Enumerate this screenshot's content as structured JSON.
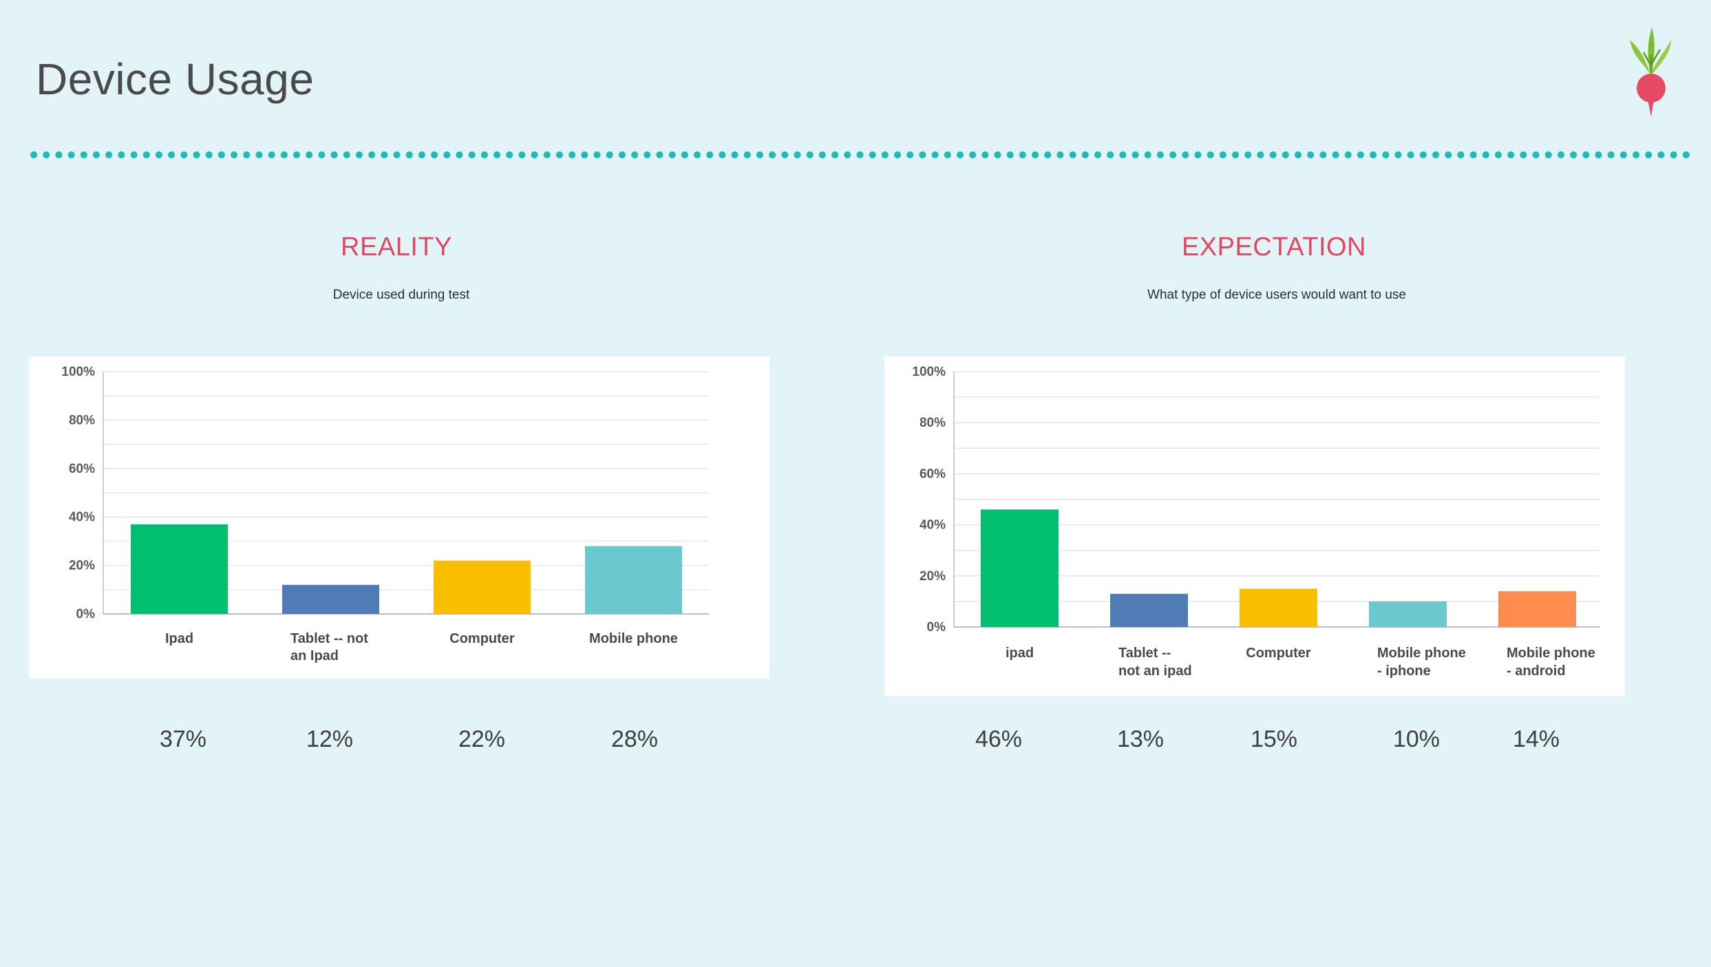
{
  "slide": {
    "title": "Device Usage"
  },
  "colors": {
    "accent": "#e0495d",
    "divider": "#1fb9b8",
    "background": "#e2f4f8"
  },
  "logo": {
    "icon": "radish-icon"
  },
  "sections": [
    {
      "title": "REALITY",
      "subtitle": "Device used during test"
    },
    {
      "title": "EXPECTATION",
      "subtitle": "What type of device users would want to use"
    }
  ],
  "chart_data": [
    {
      "type": "bar",
      "title": "",
      "xlabel": "",
      "ylabel": "",
      "categories": [
        [
          "Ipad"
        ],
        [
          "Tablet -- not",
          "an Ipad"
        ],
        [
          "Computer"
        ],
        [
          "Mobile phone"
        ]
      ],
      "values": [
        37,
        12,
        22,
        28
      ],
      "colors": [
        "#00bf6f",
        "#507cb6",
        "#f9be00",
        "#6bc8cd"
      ],
      "ylim": [
        0,
        100
      ],
      "yticks": [
        "0%",
        "20%",
        "40%",
        "60%",
        "80%",
        "100%"
      ],
      "grid": true,
      "value_labels": [
        "37%",
        "12%",
        "22%",
        "28%"
      ]
    },
    {
      "type": "bar",
      "title": "",
      "xlabel": "",
      "ylabel": "",
      "categories": [
        [
          "ipad"
        ],
        [
          "Tablet --",
          "not an ipad"
        ],
        [
          "Computer"
        ],
        [
          "Mobile phone",
          "- iphone"
        ],
        [
          "Mobile phone",
          "- android"
        ]
      ],
      "values": [
        46,
        13,
        15,
        10,
        14
      ],
      "colors": [
        "#00bf6f",
        "#507cb6",
        "#f9be00",
        "#6bc8cd",
        "#ff8b4f"
      ],
      "ylim": [
        0,
        100
      ],
      "yticks": [
        "0%",
        "20%",
        "40%",
        "60%",
        "80%",
        "100%"
      ],
      "grid": true,
      "value_labels": [
        "46%",
        "13%",
        "15%",
        "10%",
        "14%"
      ]
    }
  ]
}
